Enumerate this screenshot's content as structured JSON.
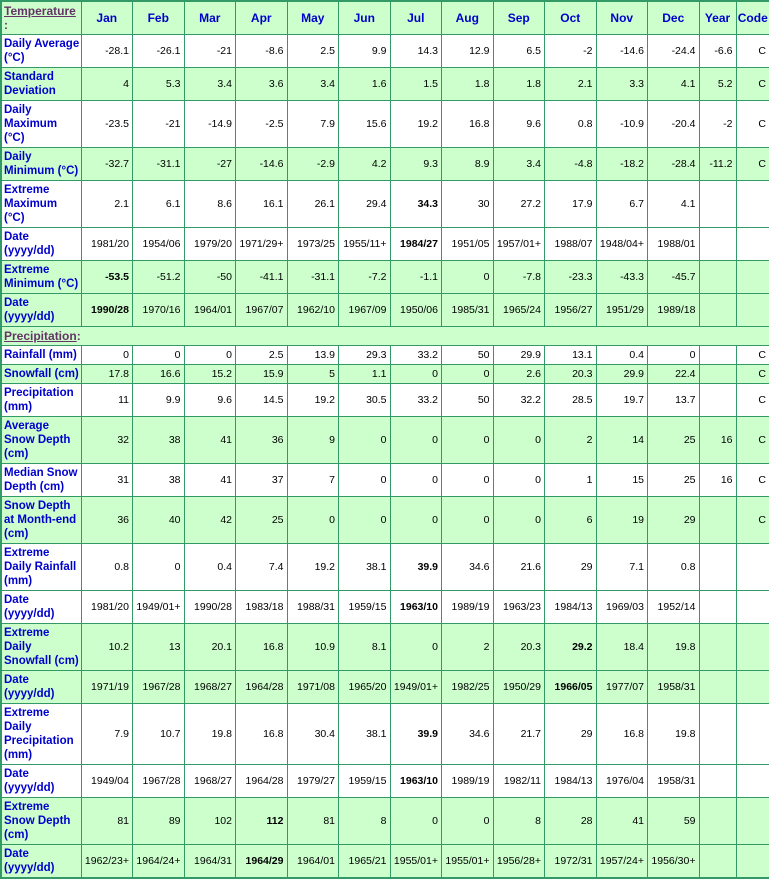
{
  "colors": {
    "border_green": "#339966",
    "row_green": "#ccffcc",
    "row_white": "#ffffff",
    "label_blue": "#0000cc",
    "section_purple": "#663366",
    "value_black": "#000000"
  },
  "columns": {
    "months": [
      "Jan",
      "Feb",
      "Mar",
      "Apr",
      "May",
      "Jun",
      "Jul",
      "Aug",
      "Sep",
      "Oct",
      "Nov",
      "Dec"
    ],
    "year_label": "Year",
    "code_label": "Code"
  },
  "sections": {
    "temperature": {
      "title": "Temperature",
      "colon": ":",
      "rows": [
        {
          "label": "Daily Average (°C)",
          "shade": "w",
          "values": [
            "-28.1",
            "-26.1",
            "-21",
            "-8.6",
            "2.5",
            "9.9",
            "14.3",
            "12.9",
            "6.5",
            "-2",
            "-14.6",
            "-24.4"
          ],
          "year": "-6.6",
          "code": "C",
          "bold": []
        },
        {
          "label": "Standard Deviation",
          "shade": "g",
          "values": [
            "4",
            "5.3",
            "3.4",
            "3.6",
            "3.4",
            "1.6",
            "1.5",
            "1.8",
            "1.8",
            "2.1",
            "3.3",
            "4.1"
          ],
          "year": "5.2",
          "code": "C",
          "bold": []
        },
        {
          "label": "Daily Maximum (°C)",
          "shade": "w",
          "values": [
            "-23.5",
            "-21",
            "-14.9",
            "-2.5",
            "7.9",
            "15.6",
            "19.2",
            "16.8",
            "9.6",
            "0.8",
            "-10.9",
            "-20.4"
          ],
          "year": "-2",
          "code": "C",
          "bold": []
        },
        {
          "label": "Daily Minimum (°C)",
          "shade": "g",
          "values": [
            "-32.7",
            "-31.1",
            "-27",
            "-14.6",
            "-2.9",
            "4.2",
            "9.3",
            "8.9",
            "3.4",
            "-4.8",
            "-18.2",
            "-28.4"
          ],
          "year": "-11.2",
          "code": "C",
          "bold": []
        },
        {
          "label": "Extreme Maximum (°C)",
          "shade": "w",
          "values": [
            "2.1",
            "6.1",
            "8.6",
            "16.1",
            "26.1",
            "29.4",
            "34.3",
            "30",
            "27.2",
            "17.9",
            "6.7",
            "4.1"
          ],
          "year": "",
          "code": "",
          "bold": [
            6
          ]
        },
        {
          "label": "Date (yyyy/dd)",
          "shade": "w",
          "values": [
            "1981/20",
            "1954/06",
            "1979/20",
            "1971/29+",
            "1973/25",
            "1955/11+",
            "1984/27",
            "1951/05",
            "1957/01+",
            "1988/07",
            "1948/04+",
            "1988/01"
          ],
          "year": "",
          "code": "",
          "bold": [
            6
          ]
        },
        {
          "label": "Extreme Minimum (°C)",
          "shade": "g",
          "values": [
            "-53.5",
            "-51.2",
            "-50",
            "-41.1",
            "-31.1",
            "-7.2",
            "-1.1",
            "0",
            "-7.8",
            "-23.3",
            "-43.3",
            "-45.7"
          ],
          "year": "",
          "code": "",
          "bold": [
            0
          ]
        },
        {
          "label": "Date (yyyy/dd)",
          "shade": "g",
          "values": [
            "1990/28",
            "1970/16",
            "1964/01",
            "1967/07",
            "1962/10",
            "1967/09",
            "1950/06",
            "1985/31",
            "1965/24",
            "1956/27",
            "1951/29",
            "1989/18"
          ],
          "year": "",
          "code": "",
          "bold": [
            0
          ]
        }
      ]
    },
    "precipitation": {
      "title": "Precipitation",
      "colon": ":",
      "rows": [
        {
          "label": "Rainfall (mm)",
          "shade": "w",
          "values": [
            "0",
            "0",
            "0",
            "2.5",
            "13.9",
            "29.3",
            "33.2",
            "50",
            "29.9",
            "13.1",
            "0.4",
            "0"
          ],
          "year": "",
          "code": "C",
          "bold": []
        },
        {
          "label": "Snowfall (cm)",
          "shade": "g",
          "values": [
            "17.8",
            "16.6",
            "15.2",
            "15.9",
            "5",
            "1.1",
            "0",
            "0",
            "2.6",
            "20.3",
            "29.9",
            "22.4"
          ],
          "year": "",
          "code": "C",
          "bold": []
        },
        {
          "label": "Precipitation (mm)",
          "shade": "w",
          "values": [
            "11",
            "9.9",
            "9.6",
            "14.5",
            "19.2",
            "30.5",
            "33.2",
            "50",
            "32.2",
            "28.5",
            "19.7",
            "13.7"
          ],
          "year": "",
          "code": "C",
          "bold": []
        },
        {
          "label": "Average Snow Depth (cm)",
          "shade": "g",
          "values": [
            "32",
            "38",
            "41",
            "36",
            "9",
            "0",
            "0",
            "0",
            "0",
            "2",
            "14",
            "25"
          ],
          "year": "16",
          "code": "C",
          "bold": []
        },
        {
          "label": "Median Snow Depth (cm)",
          "shade": "w",
          "values": [
            "31",
            "38",
            "41",
            "37",
            "7",
            "0",
            "0",
            "0",
            "0",
            "1",
            "15",
            "25"
          ],
          "year": "16",
          "code": "C",
          "bold": []
        },
        {
          "label": "Snow Depth at Month-end (cm)",
          "shade": "g",
          "values": [
            "36",
            "40",
            "42",
            "25",
            "0",
            "0",
            "0",
            "0",
            "0",
            "6",
            "19",
            "29"
          ],
          "year": "",
          "code": "C",
          "bold": []
        },
        {
          "label": "Extreme Daily Rainfall (mm)",
          "shade": "w",
          "values": [
            "0.8",
            "0",
            "0.4",
            "7.4",
            "19.2",
            "38.1",
            "39.9",
            "34.6",
            "21.6",
            "29",
            "7.1",
            "0.8"
          ],
          "year": "",
          "code": "",
          "bold": [
            6
          ]
        },
        {
          "label": "Date (yyyy/dd)",
          "shade": "w",
          "values": [
            "1981/20",
            "1949/01+",
            "1990/28",
            "1983/18",
            "1988/31",
            "1959/15",
            "1963/10",
            "1989/19",
            "1963/23",
            "1984/13",
            "1969/03",
            "1952/14"
          ],
          "year": "",
          "code": "",
          "bold": [
            6
          ]
        },
        {
          "label": "Extreme Daily Snowfall (cm)",
          "shade": "g",
          "values": [
            "10.2",
            "13",
            "20.1",
            "16.8",
            "10.9",
            "8.1",
            "0",
            "2",
            "20.3",
            "29.2",
            "18.4",
            "19.8"
          ],
          "year": "",
          "code": "",
          "bold": [
            9
          ]
        },
        {
          "label": "Date (yyyy/dd)",
          "shade": "g",
          "values": [
            "1971/19",
            "1967/28",
            "1968/27",
            "1964/28",
            "1971/08",
            "1965/20",
            "1949/01+",
            "1982/25",
            "1950/29",
            "1966/05",
            "1977/07",
            "1958/31"
          ],
          "year": "",
          "code": "",
          "bold": [
            9
          ]
        },
        {
          "label": "Extreme Daily Precipitation (mm)",
          "shade": "w",
          "values": [
            "7.9",
            "10.7",
            "19.8",
            "16.8",
            "30.4",
            "38.1",
            "39.9",
            "34.6",
            "21.7",
            "29",
            "16.8",
            "19.8"
          ],
          "year": "",
          "code": "",
          "bold": [
            6
          ]
        },
        {
          "label": "Date (yyyy/dd)",
          "shade": "w",
          "values": [
            "1949/04",
            "1967/28",
            "1968/27",
            "1964/28",
            "1979/27",
            "1959/15",
            "1963/10",
            "1989/19",
            "1982/11",
            "1984/13",
            "1976/04",
            "1958/31"
          ],
          "year": "",
          "code": "",
          "bold": [
            6
          ]
        },
        {
          "label": "Extreme Snow Depth (cm)",
          "shade": "g",
          "values": [
            "81",
            "89",
            "102",
            "112",
            "81",
            "8",
            "0",
            "0",
            "8",
            "28",
            "41",
            "59"
          ],
          "year": "",
          "code": "",
          "bold": [
            3
          ]
        },
        {
          "label": "Date (yyyy/dd)",
          "shade": "g",
          "values": [
            "1962/23+",
            "1964/24+",
            "1964/31",
            "1964/29",
            "1964/01",
            "1965/21",
            "1955/01+",
            "1955/01+",
            "1956/28+",
            "1972/31",
            "1957/24+",
            "1956/30+"
          ],
          "year": "",
          "code": "",
          "bold": [
            3
          ]
        }
      ]
    }
  }
}
